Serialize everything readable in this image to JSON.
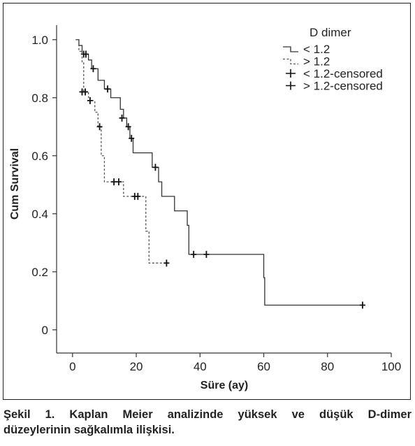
{
  "chart_data": {
    "type": "line",
    "title": "",
    "xlabel": "Süre (ay)",
    "ylabel": "Cum Survival",
    "xlim": [
      -5,
      100
    ],
    "ylim": [
      -0.08,
      1.05
    ],
    "x_ticks": [
      0,
      20,
      40,
      60,
      80,
      100
    ],
    "x_tick_labels": [
      "0",
      "20",
      "40",
      "60",
      "80",
      "100"
    ],
    "y_ticks": [
      0,
      0.2,
      0.4,
      0.6,
      0.8,
      1.0
    ],
    "y_tick_labels": [
      "0",
      "0.2",
      "0.4",
      "0.6",
      "0.8",
      "1.0"
    ],
    "grid": false,
    "legend_title": "D dimer",
    "legend_position": "top-right",
    "series": [
      {
        "name": "< 1.2",
        "style": "solid",
        "color": "#333333",
        "steps": [
          [
            1,
            1.0
          ],
          [
            2,
            0.98
          ],
          [
            3,
            0.95
          ],
          [
            5,
            0.93
          ],
          [
            6,
            0.9
          ],
          [
            8,
            0.86
          ],
          [
            10,
            0.83
          ],
          [
            12,
            0.8
          ],
          [
            15,
            0.76
          ],
          [
            16,
            0.73
          ],
          [
            17,
            0.7
          ],
          [
            18,
            0.66
          ],
          [
            19,
            0.61
          ],
          [
            25,
            0.56
          ],
          [
            27,
            0.51
          ],
          [
            28,
            0.46
          ],
          [
            32,
            0.41
          ],
          [
            36,
            0.36
          ],
          [
            36.5,
            0.26
          ],
          [
            60,
            0.18
          ],
          [
            60.3,
            0.085
          ],
          [
            91,
            0.085
          ]
        ],
        "censored": [
          [
            3.5,
            0.95
          ],
          [
            4.2,
            0.95
          ],
          [
            6.5,
            0.9
          ],
          [
            11,
            0.83
          ],
          [
            15.5,
            0.73
          ],
          [
            17.5,
            0.7
          ],
          [
            18.5,
            0.66
          ],
          [
            26,
            0.56
          ],
          [
            38,
            0.26
          ],
          [
            42,
            0.26
          ],
          [
            91,
            0.085
          ]
        ]
      },
      {
        "name": "> 1.2",
        "style": "dashed",
        "color": "#555555",
        "steps": [
          [
            1,
            1.0
          ],
          [
            2,
            0.96
          ],
          [
            3,
            0.92
          ],
          [
            3.5,
            0.82
          ],
          [
            5,
            0.79
          ],
          [
            7,
            0.75
          ],
          [
            8,
            0.7
          ],
          [
            9,
            0.6
          ],
          [
            10,
            0.51
          ],
          [
            16,
            0.46
          ],
          [
            23,
            0.34
          ],
          [
            24,
            0.23
          ],
          [
            30,
            0.23
          ]
        ],
        "censored": [
          [
            3,
            0.82
          ],
          [
            4,
            0.82
          ],
          [
            5.5,
            0.79
          ],
          [
            8.5,
            0.7
          ],
          [
            13,
            0.51
          ],
          [
            14.5,
            0.51
          ],
          [
            19.5,
            0.46
          ],
          [
            20.5,
            0.46
          ],
          [
            29.5,
            0.23
          ]
        ]
      }
    ],
    "legend_entries": [
      "< 1.2",
      "> 1.2",
      "< 1.2-censored",
      "> 1.2-censored"
    ]
  },
  "caption": {
    "line1": "Şekil 1. Kaplan Meier analizinde yüksek ve düşük D-dimer",
    "line2": "düzeylerinin sağkalımla ilişkisi."
  }
}
